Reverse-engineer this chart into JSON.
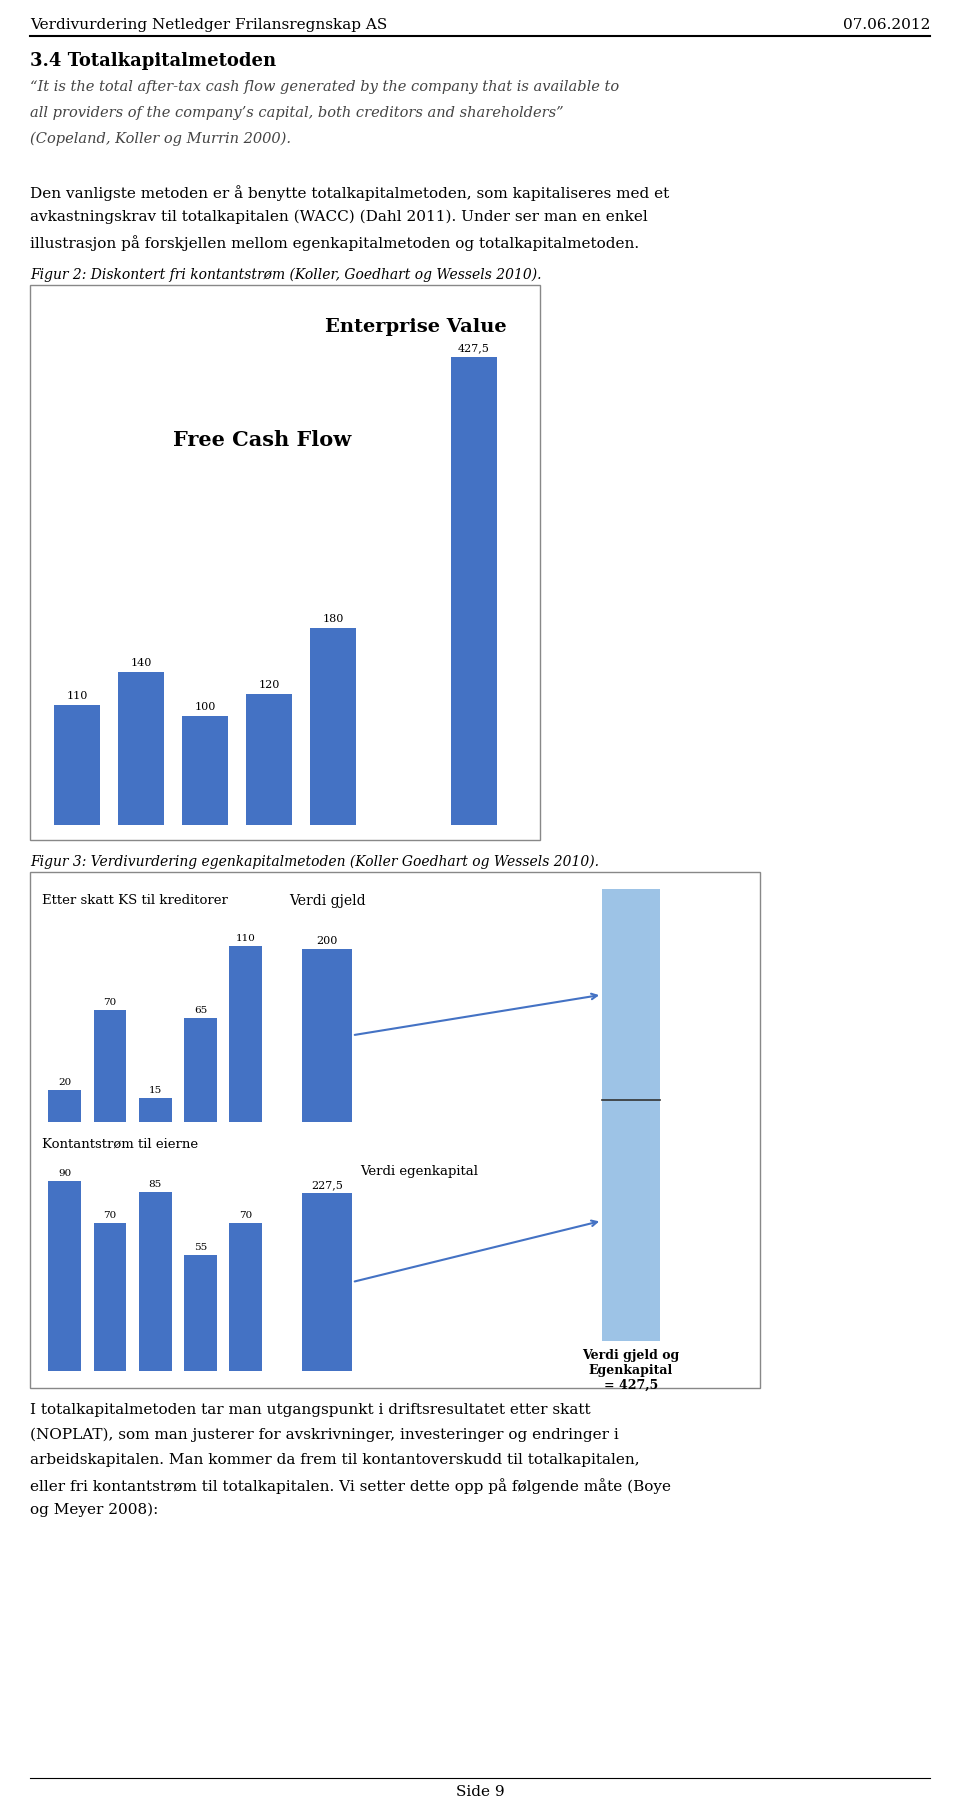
{
  "page_title_left": "Verdivurdering Netledger Frilansregnskap AS",
  "page_title_right": "07.06.2012",
  "section_heading": "3.4 Totalkapitalmetoden",
  "quote_line1": "“It is the total after-tax cash flow generated by the company that is available to",
  "quote_line2": "all providers of the company’s capital, both creditors and shareholders”",
  "quote_line3": "(Copeland, Koller og Murrin 2000).",
  "body1_line1": "Den vanligste metoden er å benytte totalkapitalmetoden, som kapitaliseres med et",
  "body1_line2": "avkastningskrav til totalkapitalen (WACC) (Dahl 2011). Under ser man en enkel",
  "body1_line3": "illustrasjon på forskjellen mellom egenkapitalmetoden og totalkapitalmetoden.",
  "fig2_caption": "Figur 2: Diskontert fri kontantstrøm (Koller, Goedhart og Wessels 2010).",
  "fig2_label_fcf": "Free Cash Flow",
  "fig2_label_ev": "Enterprise Value",
  "fig2_bars": [
    110,
    140,
    100,
    120,
    180,
    427.5
  ],
  "fig2_bar_labels": [
    "110",
    "140",
    "100",
    "120",
    "180",
    "427,5"
  ],
  "fig3_caption": "Figur 3: Verdivurdering egenkapitalmetoden (Koller Goedhart og Wessels 2010).",
  "fig3_label_kreditor": "Etter skatt KS til kreditorer",
  "fig3_label_kontant": "Kontantstrøm til eierne",
  "fig3_label_verdi_gjeld": "Verdi gjeld",
  "fig3_label_verdi_ek": "Verdi egenkapital",
  "fig3_label_combined": "Verdi gjeld og\nEgenkapital\n= 427,5",
  "fig3_kreditor_bars": [
    20,
    70,
    15,
    65,
    110
  ],
  "fig3_kreditor_labels": [
    "20",
    "70",
    "15",
    "65",
    "110"
  ],
  "fig3_kontant_bars": [
    90,
    70,
    85,
    55,
    70
  ],
  "fig3_kontant_labels": [
    "90",
    "70",
    "85",
    "55",
    "70"
  ],
  "fig3_verdi_gjeld": 200,
  "fig3_verdi_ek": 227.5,
  "body2_line1": "I totalkapitalmetoden tar man utgangspunkt i driftsresultatet etter skatt",
  "body2_line2": "(NOPLAT), som man justerer for avskrivninger, investeringer og endringer i",
  "body2_line3": "arbeidskapitalen. Man kommer da frem til kontantoverskudd til totalkapitalen,",
  "body2_line4": "eller fri kontantstrøm til totalkapitalen. Vi setter dette opp på følgende måte (Boye",
  "body2_line5": "og Meyer 2008):",
  "footer_text": "Side 9",
  "bar_color_dark": "#4472C4",
  "bar_color_light": "#9DC3E6",
  "background_color": "#FFFFFF"
}
